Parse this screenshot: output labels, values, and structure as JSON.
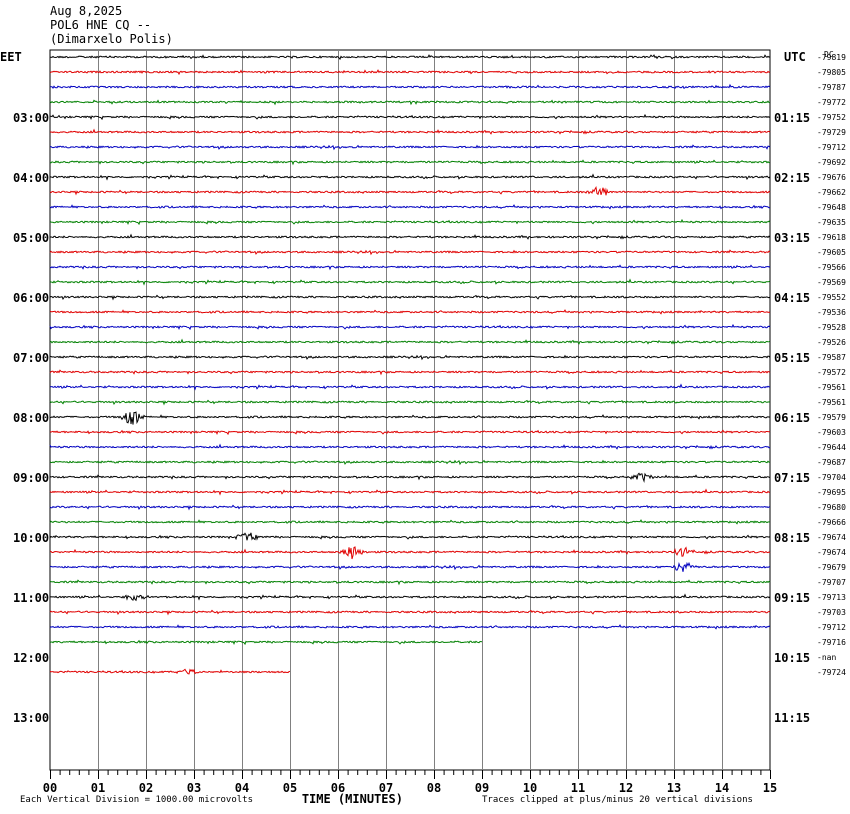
{
  "header": {
    "date": "Aug 8,2025",
    "station": "POL6 HNE CQ --",
    "location": "(Dimarxelo Polis)"
  },
  "chart_data": {
    "type": "line",
    "title": "POL6 HNE CQ --",
    "left_timezone": "EET",
    "right_timezone": "UTC",
    "dc_label": "DC",
    "left_time_labels": [
      "03:00",
      "04:00",
      "05:00",
      "06:00",
      "07:00",
      "08:00",
      "09:00",
      "10:00",
      "11:00",
      "12:00",
      "13:00"
    ],
    "right_time_labels": [
      "01:15",
      "02:15",
      "03:15",
      "04:15",
      "05:15",
      "06:15",
      "07:15",
      "08:15",
      "09:15",
      "10:15",
      "11:15"
    ],
    "x_ticks": [
      "00",
      "01",
      "02",
      "03",
      "04",
      "05",
      "06",
      "07",
      "08",
      "09",
      "10",
      "11",
      "12",
      "13",
      "14",
      "15"
    ],
    "xlabel": "TIME (MINUTES)",
    "xlim": [
      0,
      15
    ],
    "trace_colors": [
      "#000000",
      "#e00000",
      "#0000c0",
      "#008000"
    ],
    "dc_offsets": [
      "-79819",
      "-79805",
      "-79787",
      "-79772",
      "-79752",
      "-79729",
      "-79712",
      "-79692",
      "-79676",
      "-79662",
      "-79648",
      "-79635",
      "-79618",
      "-79605",
      "-79566",
      "-79569",
      "-79552",
      "-79536",
      "-79528",
      "-79526",
      "-79587",
      "-79572",
      "-79561",
      "-79561",
      "-79579",
      "-79603",
      "-79644",
      "-79687",
      "-79704",
      "-79695",
      "-79680",
      "-79666",
      "-79674",
      "-79674",
      "-79679",
      "-79707",
      "-79713",
      "-79703",
      "-79712",
      "-79716",
      "-nan",
      "-79724"
    ],
    "trace_end_minutes": [
      15,
      15,
      15,
      15,
      15,
      15,
      15,
      15,
      15,
      15,
      15,
      15,
      15,
      15,
      15,
      15,
      15,
      15,
      15,
      15,
      15,
      15,
      15,
      15,
      15,
      15,
      15,
      15,
      15,
      15,
      15,
      15,
      15,
      15,
      15,
      15,
      15,
      15,
      15,
      9,
      null,
      5
    ],
    "events": [
      {
        "trace": 9,
        "minute": 11.4,
        "amplitude": 8
      },
      {
        "trace": 24,
        "minute": 1.7,
        "amplitude": 9
      },
      {
        "trace": 28,
        "minute": 12.3,
        "amplitude": 5
      },
      {
        "trace": 32,
        "minute": 4.1,
        "amplitude": 5
      },
      {
        "trace": 33,
        "minute": 6.3,
        "amplitude": 7
      },
      {
        "trace": 33,
        "minute": 13.2,
        "amplitude": 5
      },
      {
        "trace": 34,
        "minute": 13.2,
        "amplitude": 6
      },
      {
        "trace": 36,
        "minute": 1.8,
        "amplitude": 4
      },
      {
        "trace": 41,
        "minute": 2.9,
        "amplitude": 4
      }
    ]
  },
  "footer": {
    "scale_note": "Each Vertical Division = 1000.00 microvolts",
    "clip_note": "Traces clipped at plus/minus 20 vertical divisions"
  }
}
